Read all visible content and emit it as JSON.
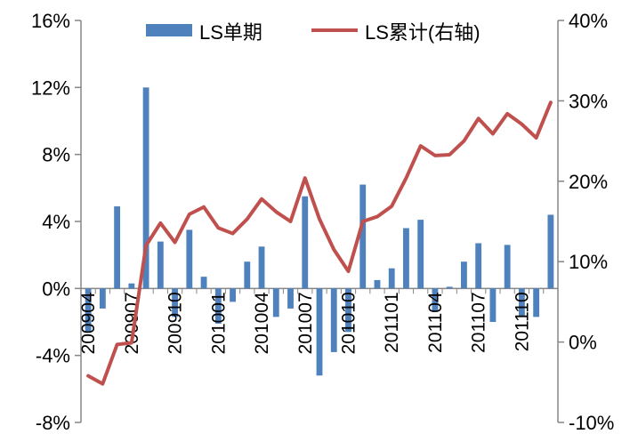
{
  "chart_data": {
    "type": "bar+line",
    "title": "",
    "legend": {
      "placement": "top",
      "items": [
        {
          "label": "LS单期",
          "kind": "bar",
          "color": "#4F81BD"
        },
        {
          "label": "LS累计(右轴)",
          "kind": "line",
          "color": "#C0504D"
        }
      ]
    },
    "x": {
      "categories": [
        "200904",
        "200905",
        "200906",
        "200907",
        "200908",
        "200909",
        "200910",
        "200911",
        "200912",
        "201001",
        "201002",
        "201003",
        "201004",
        "201005",
        "201006",
        "201007",
        "201008",
        "201009",
        "201010",
        "201011",
        "201012",
        "201101",
        "201102",
        "201103",
        "201104",
        "201105",
        "201106",
        "201107",
        "201108",
        "201109",
        "201110",
        "201111",
        "201112"
      ],
      "tick_labels_shown": [
        "200904",
        "200907",
        "200910",
        "201001",
        "201004",
        "201007",
        "201010",
        "201101",
        "201104",
        "201107",
        "201110"
      ],
      "label_rotation": -90
    },
    "y_left": {
      "range": [
        -8,
        16
      ],
      "ticks": [
        -8,
        -4,
        0,
        4,
        8,
        12,
        16
      ],
      "tick_labels": [
        "-8%",
        "-4%",
        "0%",
        "4%",
        "8%",
        "12%",
        "16%"
      ]
    },
    "y_right": {
      "range": [
        -10,
        40
      ],
      "ticks": [
        -10,
        0,
        10,
        20,
        30,
        40
      ],
      "tick_labels": [
        "-10%",
        "0%",
        "10%",
        "20%",
        "30%",
        "40%"
      ]
    },
    "series": [
      {
        "name": "LS单期",
        "type": "bar",
        "axis": "left",
        "color": "#4F81BD",
        "values": [
          -2.6,
          -1.2,
          4.9,
          0.3,
          12.0,
          2.8,
          -1.7,
          3.5,
          0.7,
          -2.1,
          -0.8,
          1.6,
          2.5,
          -1.7,
          -1.2,
          5.5,
          -5.2,
          -3.8,
          -2.6,
          6.2,
          0.5,
          1.2,
          3.6,
          4.1,
          -1.4,
          0.1,
          1.6,
          2.7,
          -2.0,
          2.6,
          -1.7,
          -1.7,
          4.4
        ]
      },
      {
        "name": "LS累计(右轴)",
        "type": "line",
        "axis": "right",
        "color": "#C0504D",
        "values": [
          -4.2,
          -5.2,
          -0.3,
          -0.1,
          12.0,
          14.8,
          12.4,
          15.9,
          16.8,
          14.2,
          13.5,
          15.3,
          17.8,
          16.2,
          15.0,
          20.4,
          15.3,
          11.5,
          8.8,
          15.0,
          15.6,
          16.9,
          20.4,
          24.4,
          23.2,
          23.3,
          25.0,
          27.8,
          25.9,
          28.4,
          27.1,
          25.4,
          29.8
        ]
      }
    ]
  }
}
